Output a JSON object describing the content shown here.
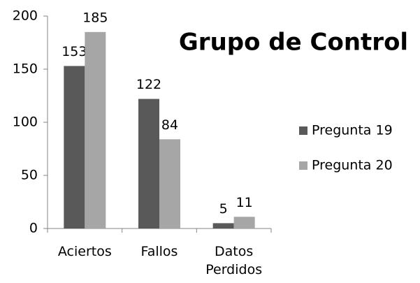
{
  "chart_data": {
    "type": "bar",
    "title": "Grupo de Control",
    "categories": [
      "Aciertos",
      "Fallos",
      "Datos Perdidos"
    ],
    "series": [
      {
        "name": "Pregunta 19",
        "color": "#595959",
        "values": [
          153,
          122,
          5
        ]
      },
      {
        "name": "Pregunta 20",
        "color": "#a6a6a6",
        "values": [
          185,
          84,
          11
        ]
      }
    ],
    "ylim": [
      0,
      200
    ],
    "yticks": [
      0,
      50,
      100,
      150,
      200
    ],
    "grid": false,
    "legend": "right"
  }
}
